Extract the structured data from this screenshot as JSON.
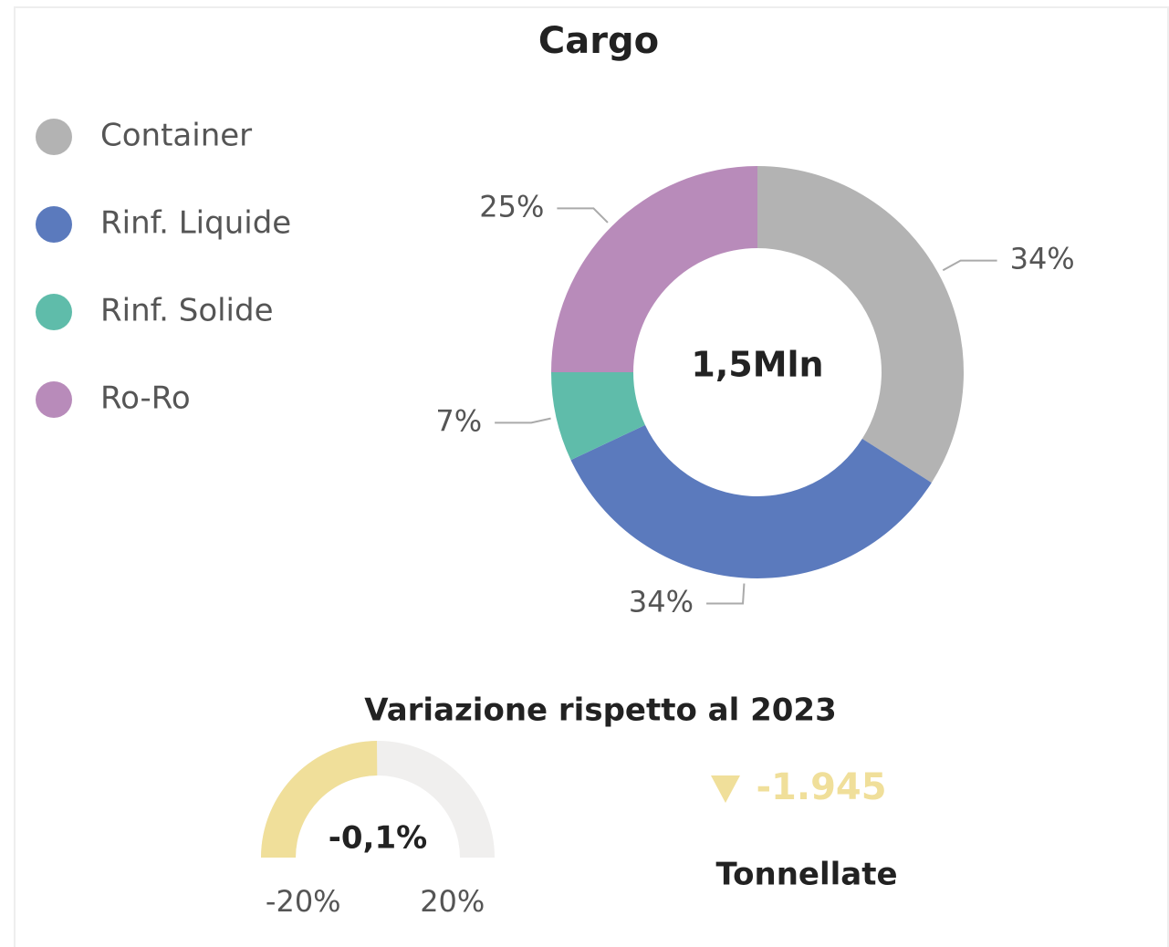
{
  "chart_data": [
    {
      "type": "donut",
      "title": "Cargo",
      "center_label": "1,5Mln",
      "categories": [
        "Container",
        "Rinf. Liquide",
        "Rinf. Solide",
        "Ro-Ro"
      ],
      "values": [
        34,
        34,
        7,
        25
      ],
      "value_labels": [
        "34%",
        "34%",
        "7%",
        "25%"
      ],
      "colors": [
        "#b3b3b3",
        "#5b7abd",
        "#5fbcaa",
        "#b88bba"
      ],
      "legend": "top-left"
    },
    {
      "type": "gauge",
      "title": "Variazione rispetto al 2023",
      "value": -0.1,
      "value_label": "-0,1%",
      "ylim": [
        -20,
        20
      ],
      "yticks": [
        {
          "value": -20,
          "label": "-20%"
        },
        {
          "value": 20,
          "label": "20%"
        }
      ],
      "color": "#f0df9a",
      "track_color": "#f0efee"
    }
  ],
  "kpi": {
    "value": -1945,
    "value_label": "-1.945",
    "unit": "Tonnellate",
    "color": "#f0df9a"
  }
}
